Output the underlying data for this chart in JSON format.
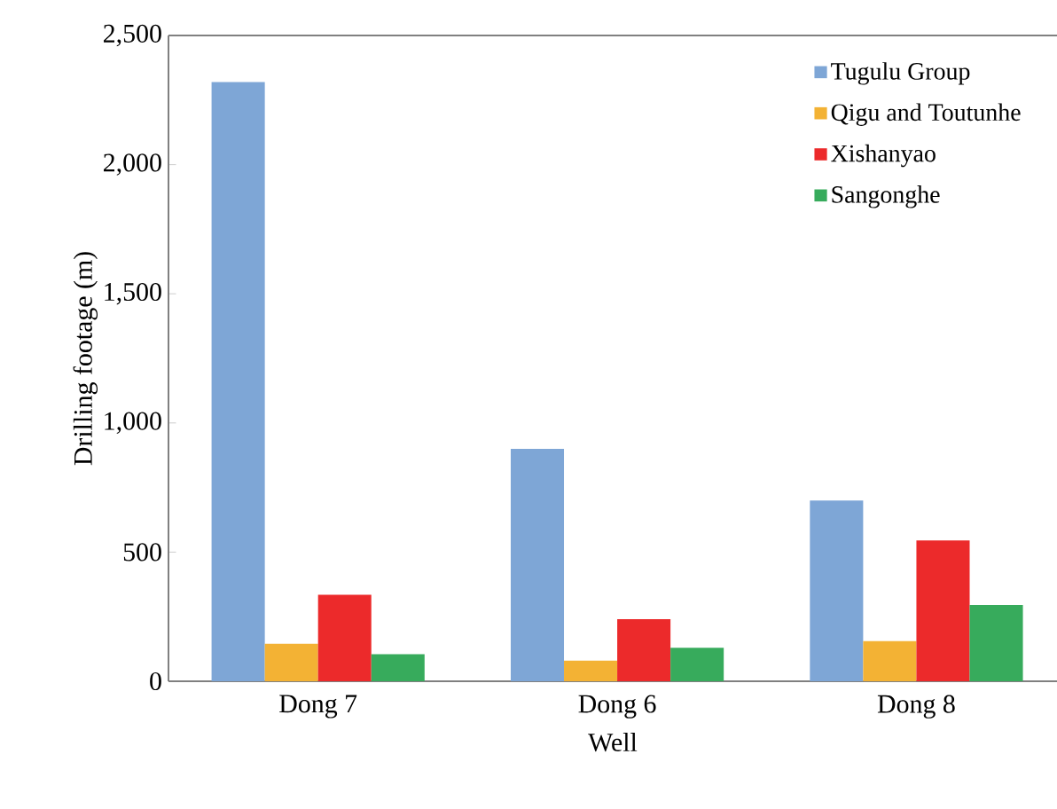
{
  "chart_data": {
    "type": "bar",
    "xlabel": "Well",
    "ylabel": "Drilling footage (m)",
    "categories": [
      "Dong 7",
      "Dong 6",
      "Dong 8"
    ],
    "series": [
      {
        "name": "Tugulu Group",
        "color": "#7ea6d6",
        "values": [
          2320,
          900,
          700
        ]
      },
      {
        "name": "Qigu and Toutunhe",
        "color": "#f3b234",
        "values": [
          145,
          80,
          155
        ]
      },
      {
        "name": "Xishanyao",
        "color": "#ec2a2b",
        "values": [
          335,
          240,
          545
        ]
      },
      {
        "name": "Sangonghe",
        "color": "#37ab5c",
        "values": [
          105,
          130,
          295
        ]
      }
    ],
    "ylim": [
      0,
      2500
    ],
    "yticks": [
      0,
      {
        "value": 500,
        "label": "500"
      },
      {
        "value": 1000,
        "label": "1,000"
      },
      {
        "value": 1500,
        "label": "1,500"
      },
      {
        "value": 2000,
        "label": "2,000"
      },
      {
        "value": 2500,
        "label": "2,500"
      }
    ],
    "grid": false,
    "legend": "top right"
  }
}
